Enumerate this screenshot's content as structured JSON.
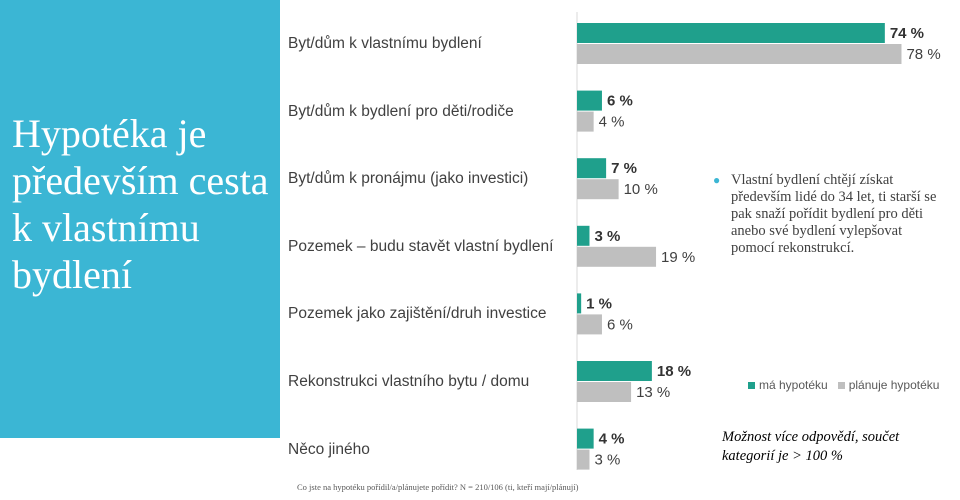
{
  "side_title": "Hypotéka je především cesta k vlastnímu bydlení",
  "note": "Vlastní bydlení  chtějí získat především lidé do 34 let, ti starší se pak snaží pořídit bydlení pro děti anebo své bydlení vylepšovat pomocí rekonstrukcí.",
  "footnote": "Možnost více odpovědí, součet kategorií je > 100 %",
  "source": "Co jste na hypotéku pořídil/a/plánujete pořídit? N = 210/106 (ti, kteří mají/plánují)",
  "colors": {
    "panel": "#3bb6d4",
    "series1": "#1fa08c",
    "series2": "#bfbfbf",
    "text": "#404040"
  },
  "chart_data": {
    "type": "bar",
    "orientation": "horizontal",
    "categories": [
      "Byt/dům k vlastnímu bydlení",
      "Byt/dům k bydlení pro děti/rodiče",
      "Byt/dům k pronájmu (jako investici)",
      "Pozemek – budu stavět vlastní bydlení",
      "Pozemek jako zajištění/druh investice",
      "Rekonstrukci vlastního bytu / domu",
      "Něco jiného"
    ],
    "series": [
      {
        "name": "má hypotéku",
        "values": [
          74,
          6,
          7,
          3,
          1,
          18,
          4
        ],
        "labels": [
          "74 %",
          "6 %",
          "7 %",
          "3 %",
          "1 %",
          "18 %",
          "4 %"
        ]
      },
      {
        "name": "plánuje hypotéku",
        "values": [
          78,
          4,
          10,
          19,
          6,
          13,
          3
        ],
        "labels": [
          "78 %",
          "4 %",
          "10 %",
          "19 %",
          "6 %",
          "13 %",
          "3 %"
        ]
      }
    ],
    "legend": "right",
    "grid": false
  }
}
